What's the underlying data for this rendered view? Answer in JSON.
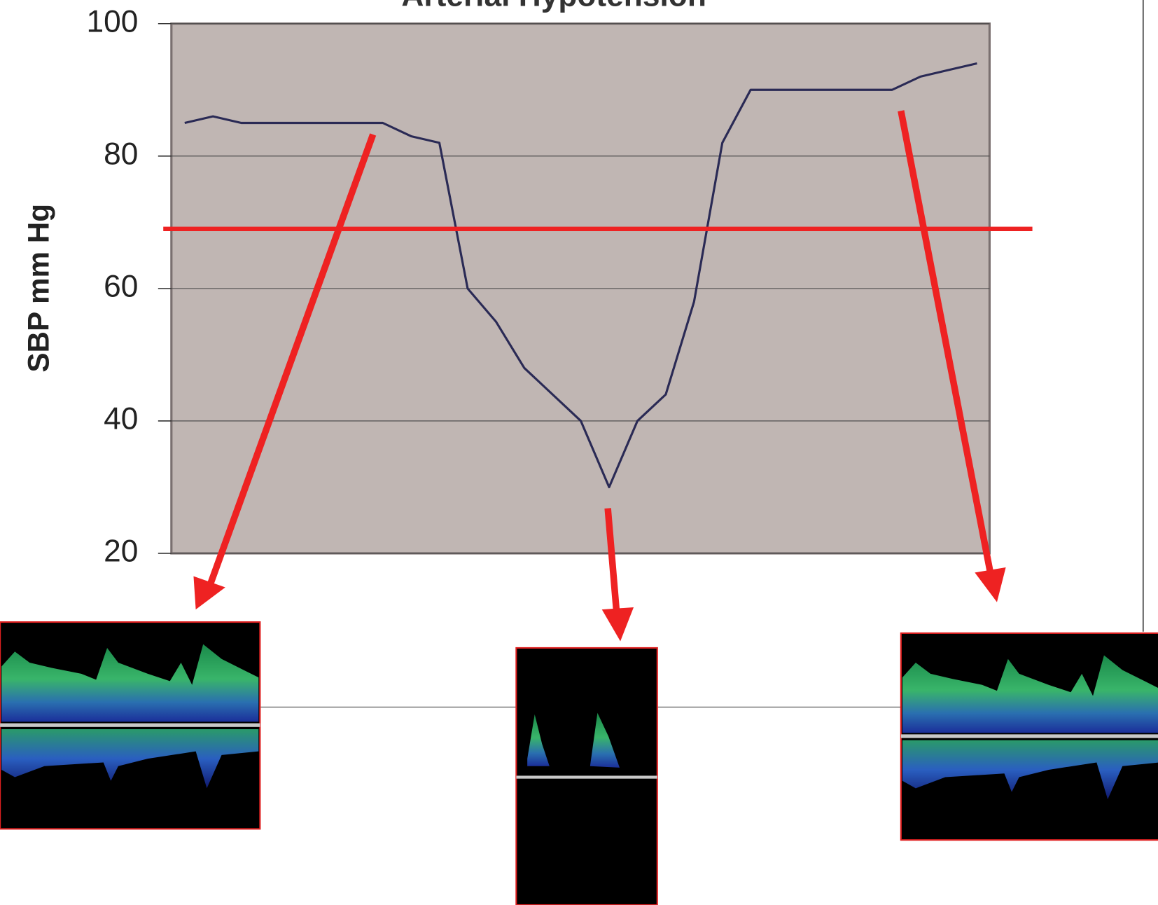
{
  "chart_data": {
    "type": "line",
    "title": "Arterial Hypotension",
    "y_label": "SBP mm Hg",
    "categories": [
      null,
      null,
      null,
      null,
      null,
      null,
      null,
      null,
      null,
      null,
      null,
      null,
      null,
      null,
      null,
      null,
      null,
      null,
      null,
      null,
      null,
      null,
      null,
      null,
      null,
      null,
      null,
      null,
      null
    ],
    "values": [
      85,
      86,
      85,
      85,
      85,
      85,
      85,
      85,
      83,
      82,
      60,
      55,
      48,
      44,
      40,
      30,
      40,
      44,
      58,
      82,
      90,
      90,
      90,
      90,
      90,
      90,
      92,
      93,
      94
    ],
    "color": "#2a2a55",
    "threshold": 69,
    "threshold_color": "#ee2222",
    "ylim": [
      20,
      100
    ],
    "yticks": [
      20,
      40,
      60,
      80,
      100
    ],
    "grid": true
  }
}
